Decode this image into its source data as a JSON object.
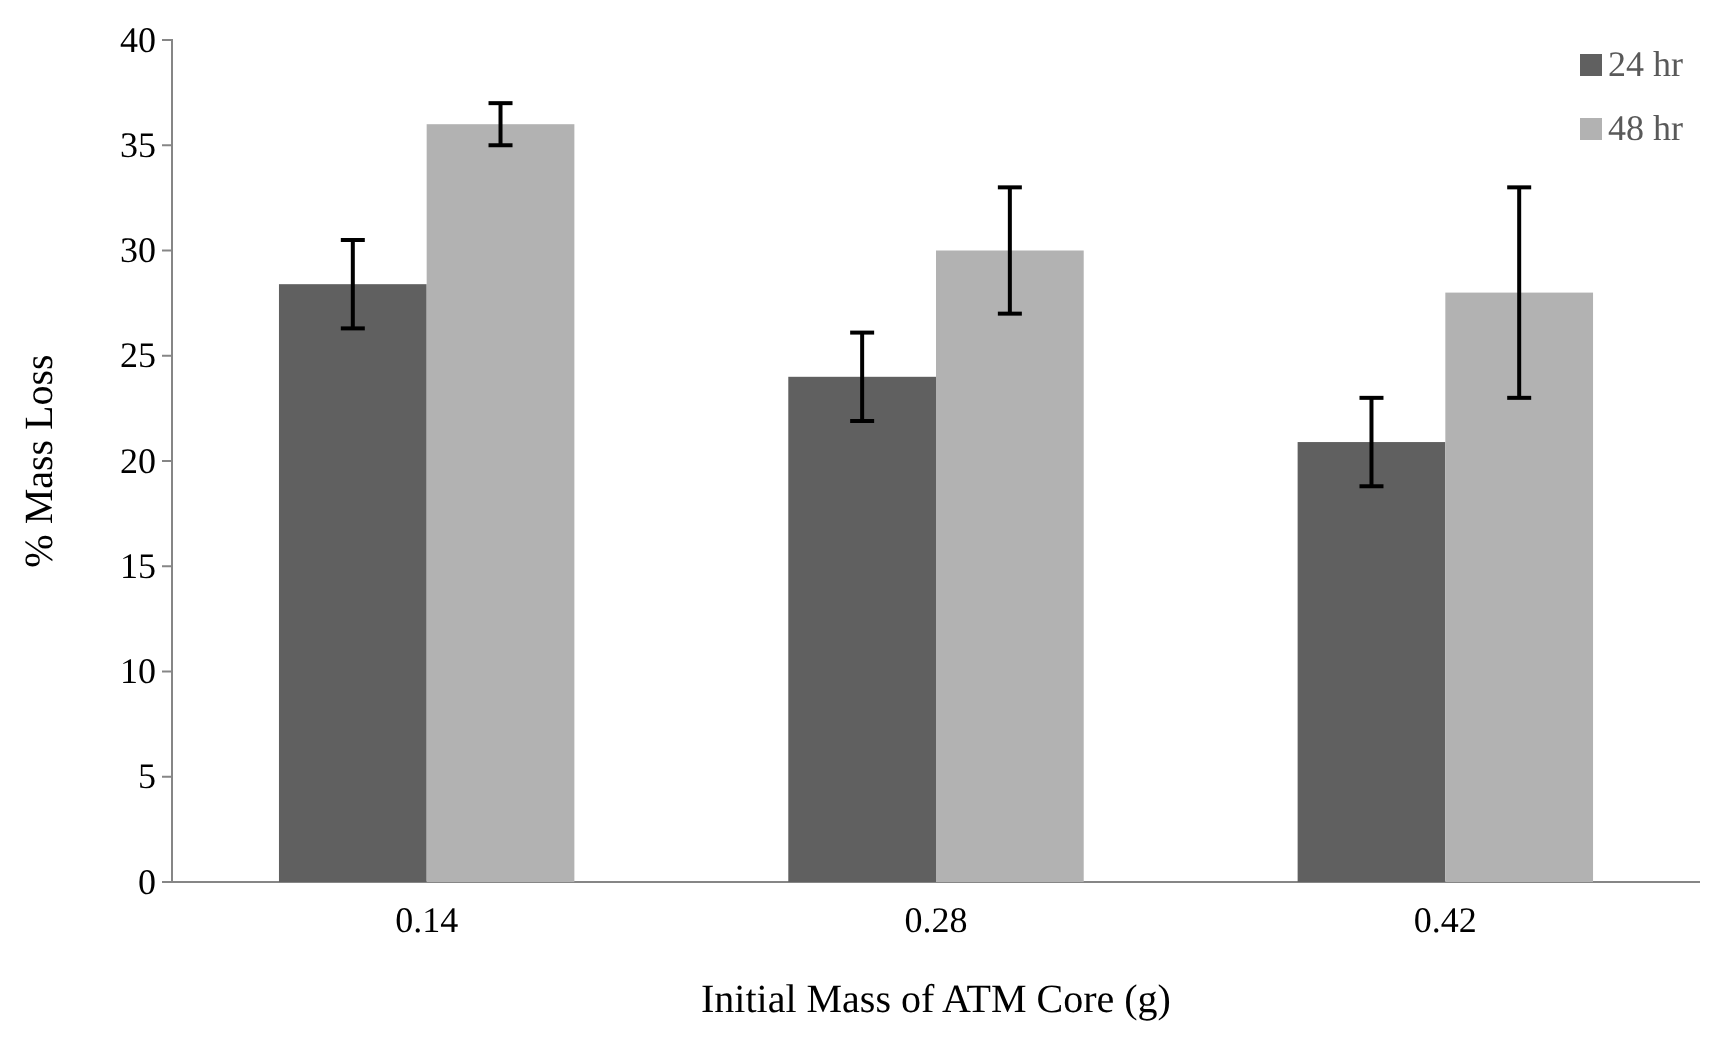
{
  "chart_data": {
    "type": "bar",
    "xlabel": "Initial Mass of ATM Core (g)",
    "ylabel": "% Mass Loss",
    "categories": [
      "0.14",
      "0.28",
      "0.42"
    ],
    "series": [
      {
        "name": "24 hr",
        "color": "#606060",
        "values": [
          28.4,
          24.0,
          20.9
        ],
        "errors": [
          2.1,
          2.1,
          2.1
        ]
      },
      {
        "name": "48 hr",
        "color": "#b2b2b2",
        "values": [
          36,
          30,
          28
        ],
        "errors": [
          1,
          3,
          5
        ]
      }
    ],
    "ylim": [
      0,
      40
    ],
    "yticks": [
      0,
      5,
      10,
      15,
      20,
      25,
      30,
      35,
      40
    ],
    "grid": false,
    "legend": "top right"
  }
}
